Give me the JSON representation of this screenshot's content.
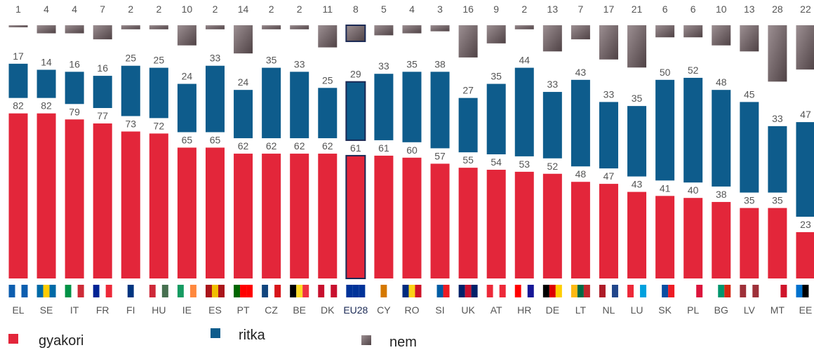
{
  "chart_data": {
    "type": "bar",
    "stacked": true,
    "categories": [
      "EL",
      "SE",
      "IT",
      "FR",
      "FI",
      "HU",
      "IE",
      "ES",
      "PT",
      "CZ",
      "BE",
      "DK",
      "EU28",
      "CY",
      "RO",
      "SI",
      "UK",
      "AT",
      "HR",
      "DE",
      "LT",
      "NL",
      "LU",
      "SK",
      "PL",
      "BG",
      "LV",
      "MT",
      "EE"
    ],
    "highlight": "EU28",
    "series": [
      {
        "name": "gyakori",
        "color": "#e3263a",
        "values": [
          82,
          82,
          79,
          77,
          73,
          72,
          65,
          65,
          62,
          62,
          62,
          62,
          61,
          61,
          60,
          57,
          55,
          54,
          53,
          52,
          48,
          47,
          43,
          41,
          40,
          38,
          35,
          35,
          23
        ]
      },
      {
        "name": "ritka",
        "color": "#0e5c8c",
        "values": [
          17,
          14,
          16,
          16,
          25,
          25,
          24,
          33,
          24,
          35,
          33,
          25,
          29,
          33,
          35,
          38,
          27,
          35,
          44,
          33,
          43,
          33,
          35,
          50,
          52,
          48,
          45,
          33,
          47
        ]
      },
      {
        "name": "nem",
        "color": "#6f6164",
        "values": [
          1,
          4,
          4,
          7,
          2,
          2,
          10,
          2,
          14,
          2,
          2,
          11,
          8,
          5,
          4,
          3,
          16,
          9,
          2,
          13,
          7,
          17,
          21,
          6,
          6,
          10,
          13,
          28,
          22
        ]
      }
    ]
  }
}
